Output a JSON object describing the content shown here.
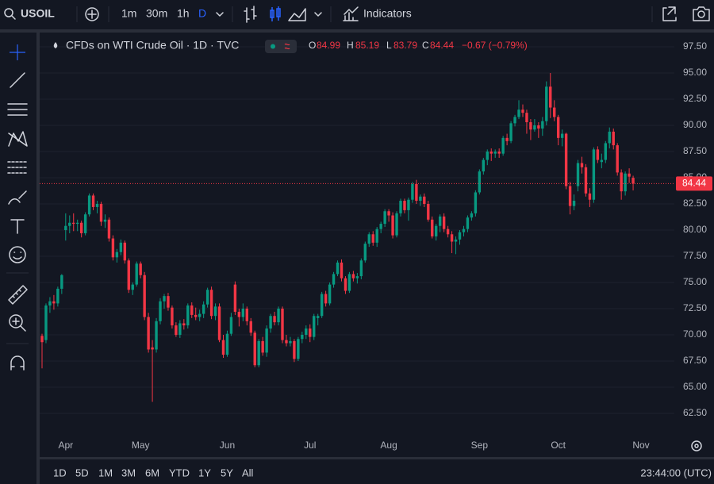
{
  "toolbar": {
    "symbol": "USOIL",
    "intervals": [
      "1m",
      "30m",
      "1h",
      "D"
    ],
    "indicators": "Indicators"
  },
  "chart_data": {
    "type": "candlestick",
    "title": "CFDs on WTI Crude Oil · 1D · TVC",
    "ohlc_labels": [
      "O",
      "H",
      "L",
      "C"
    ],
    "change": "−0.67 (−0.79%)",
    "up_color": "#089981",
    "down_color": "#f23645",
    "grid": true,
    "ylim": [
      60.68,
      98.94
    ],
    "yticks": [
      {
        "value": 62.5,
        "label": "62.50"
      },
      {
        "value": 65,
        "label": "65.00"
      },
      {
        "value": 67.5,
        "label": "67.50"
      },
      {
        "value": 70,
        "label": "70.00"
      },
      {
        "value": 72.5,
        "label": "72.50"
      },
      {
        "value": 75,
        "label": "75.00"
      },
      {
        "value": 77.5,
        "label": "77.50"
      },
      {
        "value": 80,
        "label": "80.00"
      },
      {
        "value": 82.5,
        "label": "82.50"
      },
      {
        "value": 85,
        "label": "85.00"
      },
      {
        "value": 87.5,
        "label": "87.50"
      },
      {
        "value": 90,
        "label": "90.00"
      },
      {
        "value": 92.5,
        "label": "92.50"
      },
      {
        "value": 95,
        "label": "95.00"
      },
      {
        "value": 97.5,
        "label": "97.50"
      }
    ],
    "categories": [
      null,
      null,
      null,
      null,
      null,
      null,
      "Apr",
      null,
      null,
      null,
      null,
      null,
      null,
      null,
      null,
      null,
      null,
      null,
      null,
      null,
      null,
      null,
      null,
      null,
      null,
      "May",
      null,
      null,
      null,
      null,
      null,
      null,
      null,
      null,
      null,
      null,
      null,
      null,
      null,
      null,
      null,
      null,
      null,
      null,
      null,
      null,
      null,
      "Jun",
      null,
      null,
      null,
      null,
      null,
      null,
      null,
      null,
      null,
      null,
      null,
      null,
      null,
      null,
      null,
      null,
      null,
      null,
      null,
      null,
      "Jul",
      null,
      null,
      null,
      null,
      null,
      null,
      null,
      null,
      null,
      null,
      null,
      null,
      null,
      null,
      null,
      null,
      null,
      null,
      null,
      "Aug",
      null,
      null,
      null,
      null,
      null,
      null,
      null,
      null,
      null,
      null,
      null,
      null,
      null,
      null,
      null,
      null,
      null,
      null,
      null,
      null,
      null,
      null,
      "Sep",
      null,
      null,
      null,
      null,
      null,
      null,
      null,
      null,
      null,
      null,
      null,
      null,
      null,
      null,
      null,
      null,
      null,
      null,
      null,
      "Oct",
      null,
      null,
      null,
      null,
      null,
      null,
      null,
      null,
      null,
      null,
      null,
      null,
      null,
      null,
      null,
      null,
      null,
      null,
      null,
      null,
      "Nov"
    ],
    "candles": [
      [
        69.9,
        70.1,
        66.8,
        69.3
      ],
      [
        69.5,
        73.0,
        69.2,
        72.8
      ],
      [
        72.8,
        73.6,
        72.1,
        73.2
      ],
      [
        73.2,
        73.8,
        72.4,
        73.0
      ],
      [
        73.0,
        74.6,
        72.7,
        74.4
      ],
      [
        74.4,
        75.8,
        73.9,
        75.7
      ],
      [
        80.0,
        81.6,
        79.0,
        80.4
      ],
      [
        80.4,
        81.4,
        79.7,
        80.7
      ],
      [
        80.7,
        81.6,
        79.9,
        80.6
      ],
      [
        80.6,
        81.0,
        79.9,
        80.7
      ],
      [
        80.7,
        80.9,
        79.3,
        79.7
      ],
      [
        79.7,
        81.7,
        79.5,
        81.5
      ],
      [
        81.5,
        83.5,
        81.3,
        83.3
      ],
      [
        83.3,
        83.5,
        81.9,
        82.2
      ],
      [
        82.2,
        82.8,
        81.6,
        82.5
      ],
      [
        82.5,
        82.7,
        80.4,
        80.8
      ],
      [
        80.8,
        81.5,
        80.2,
        81.0
      ],
      [
        81.0,
        81.2,
        78.9,
        79.2
      ],
      [
        79.2,
        79.5,
        77.1,
        77.4
      ],
      [
        77.4,
        78.2,
        76.9,
        77.9
      ],
      [
        77.9,
        79.1,
        77.6,
        78.8
      ],
      [
        78.8,
        79.0,
        76.8,
        77.1
      ],
      [
        77.1,
        77.3,
        74.0,
        74.3
      ],
      [
        74.3,
        75.0,
        73.8,
        74.8
      ],
      [
        74.8,
        77.0,
        74.6,
        76.8
      ],
      [
        76.8,
        77.0,
        75.4,
        75.7
      ],
      [
        75.7,
        76.0,
        71.4,
        71.7
      ],
      [
        71.7,
        72.1,
        68.3,
        68.6
      ],
      [
        68.8,
        69.5,
        63.6,
        68.6
      ],
      [
        68.6,
        71.6,
        68.3,
        71.3
      ],
      [
        71.3,
        73.5,
        71.0,
        73.2
      ],
      [
        73.2,
        73.9,
        72.5,
        73.7
      ],
      [
        73.7,
        74.0,
        72.3,
        72.6
      ],
      [
        72.6,
        72.8,
        70.6,
        70.9
      ],
      [
        70.9,
        71.2,
        69.8,
        70.0
      ],
      [
        70.0,
        71.4,
        69.7,
        71.1
      ],
      [
        71.1,
        71.5,
        70.5,
        70.9
      ],
      [
        70.9,
        73.0,
        70.6,
        72.8
      ],
      [
        72.8,
        73.1,
        71.6,
        71.9
      ],
      [
        71.9,
        72.6,
        71.4,
        71.7
      ],
      [
        71.7,
        72.4,
        71.3,
        72.0
      ],
      [
        72.0,
        73.2,
        71.6,
        72.9
      ],
      [
        72.9,
        74.5,
        72.6,
        74.3
      ],
      [
        74.3,
        74.6,
        71.5,
        71.8
      ],
      [
        71.8,
        73.0,
        71.4,
        72.7
      ],
      [
        72.7,
        73.0,
        69.3,
        69.5
      ],
      [
        69.5,
        70.0,
        67.8,
        68.1
      ],
      [
        68.1,
        70.4,
        67.9,
        70.1
      ],
      [
        70.1,
        72.1,
        69.9,
        71.7
      ],
      [
        74.8,
        75.1,
        71.9,
        72.2
      ],
      [
        72.2,
        72.5,
        70.8,
        71.7
      ],
      [
        71.7,
        73.0,
        71.3,
        72.5
      ],
      [
        72.5,
        72.7,
        70.9,
        71.3
      ],
      [
        71.3,
        71.6,
        69.9,
        70.2
      ],
      [
        70.2,
        70.4,
        66.9,
        67.1
      ],
      [
        67.1,
        69.6,
        66.9,
        69.4
      ],
      [
        69.4,
        69.8,
        68.0,
        68.3
      ],
      [
        68.3,
        70.9,
        67.9,
        70.6
      ],
      [
        70.6,
        72.0,
        70.2,
        71.8
      ],
      [
        71.8,
        72.2,
        70.9,
        71.2
      ],
      [
        71.2,
        72.7,
        70.9,
        72.5
      ],
      [
        72.5,
        72.7,
        69.2,
        69.5
      ],
      [
        69.5,
        70.0,
        68.9,
        69.2
      ],
      [
        69.2,
        69.8,
        68.9,
        69.4
      ],
      [
        69.4,
        69.6,
        67.4,
        67.7
      ],
      [
        67.7,
        69.8,
        67.5,
        69.6
      ],
      [
        69.6,
        70.3,
        69.2,
        70.0
      ],
      [
        70.0,
        70.9,
        69.6,
        70.6
      ],
      [
        70.6,
        71.0,
        69.3,
        69.8
      ],
      [
        69.8,
        72.0,
        69.5,
        71.8
      ],
      [
        71.6,
        72.0,
        70.9,
        71.8
      ],
      [
        71.8,
        74.1,
        71.6,
        73.9
      ],
      [
        73.9,
        74.2,
        72.7,
        73.0
      ],
      [
        73.0,
        75.0,
        72.8,
        74.8
      ],
      [
        74.8,
        76.0,
        74.5,
        75.8
      ],
      [
        75.8,
        77.1,
        75.6,
        76.9
      ],
      [
        76.9,
        77.2,
        75.1,
        75.4
      ],
      [
        75.4,
        75.6,
        73.9,
        74.2
      ],
      [
        74.2,
        76.0,
        74.0,
        75.8
      ],
      [
        75.8,
        76.1,
        75.1,
        75.4
      ],
      [
        75.4,
        75.9,
        74.9,
        75.6
      ],
      [
        75.6,
        77.3,
        75.3,
        77.1
      ],
      [
        77.1,
        78.9,
        76.9,
        78.7
      ],
      [
        78.7,
        79.8,
        78.4,
        79.6
      ],
      [
        79.6,
        79.9,
        78.5,
        78.8
      ],
      [
        78.8,
        80.3,
        78.4,
        80.1
      ],
      [
        80.1,
        80.8,
        79.7,
        80.6
      ],
      [
        80.6,
        82.0,
        80.3,
        81.8
      ],
      [
        81.8,
        82.0,
        80.8,
        81.4
      ],
      [
        81.4,
        81.7,
        79.2,
        79.5
      ],
      [
        79.5,
        81.8,
        79.3,
        81.6
      ],
      [
        81.6,
        83.0,
        81.3,
        82.8
      ],
      [
        82.8,
        83.0,
        81.6,
        81.9
      ],
      [
        81.9,
        83.1,
        80.9,
        82.9
      ],
      [
        82.9,
        84.6,
        82.6,
        84.4
      ],
      [
        84.4,
        84.8,
        82.5,
        82.8
      ],
      [
        82.8,
        83.4,
        82.3,
        83.2
      ],
      [
        83.2,
        83.5,
        82.2,
        82.5
      ],
      [
        82.5,
        82.8,
        80.8,
        81.0
      ],
      [
        81.0,
        81.3,
        79.2,
        79.4
      ],
      [
        79.4,
        80.6,
        79.0,
        80.4
      ],
      [
        80.4,
        81.5,
        79.8,
        81.3
      ],
      [
        81.3,
        81.6,
        79.8,
        80.1
      ],
      [
        80.1,
        80.4,
        79.3,
        79.6
      ],
      [
        79.6,
        79.9,
        77.8,
        78.9
      ],
      [
        78.9,
        79.4,
        77.7,
        79.1
      ],
      [
        79.1,
        80.0,
        78.6,
        79.8
      ],
      [
        79.8,
        80.4,
        79.4,
        80.1
      ],
      [
        80.1,
        81.4,
        79.8,
        81.2
      ],
      [
        81.2,
        81.8,
        80.9,
        81.6
      ],
      [
        81.6,
        83.8,
        81.3,
        83.6
      ],
      [
        83.6,
        85.8,
        83.4,
        85.6
      ],
      [
        85.6,
        86.9,
        85.3,
        86.7
      ],
      [
        86.7,
        87.7,
        86.2,
        87.5
      ],
      [
        87.5,
        87.8,
        86.6,
        87.3
      ],
      [
        87.3,
        87.7,
        86.9,
        87.5
      ],
      [
        87.5,
        87.8,
        86.9,
        87.3
      ],
      [
        87.3,
        89.0,
        87.1,
        88.8
      ],
      [
        88.8,
        89.2,
        88.1,
        88.5
      ],
      [
        88.5,
        90.4,
        88.3,
        90.2
      ],
      [
        90.2,
        91.0,
        89.9,
        90.8
      ],
      [
        90.8,
        92.4,
        90.6,
        91.5
      ],
      [
        91.5,
        92.0,
        90.8,
        91.2
      ],
      [
        91.2,
        91.5,
        89.2,
        90.3
      ],
      [
        90.3,
        90.6,
        88.6,
        89.6
      ],
      [
        89.6,
        90.6,
        89.4,
        90.0
      ],
      [
        90.0,
        90.3,
        88.8,
        89.7
      ],
      [
        89.7,
        90.8,
        89.0,
        90.4
      ],
      [
        90.4,
        94.2,
        90.0,
        93.7
      ],
      [
        93.7,
        95.0,
        90.7,
        91.7
      ],
      [
        91.7,
        92.4,
        90.4,
        90.8
      ],
      [
        90.8,
        91.0,
        88.1,
        88.8
      ],
      [
        88.8,
        89.6,
        88.0,
        89.2
      ],
      [
        89.2,
        89.3,
        83.9,
        84.2
      ],
      [
        84.2,
        84.6,
        81.5,
        82.3
      ],
      [
        82.3,
        83.4,
        81.9,
        82.8
      ],
      [
        84.2,
        86.7,
        83.7,
        86.4
      ],
      [
        86.4,
        87.0,
        85.4,
        86.0
      ],
      [
        86.0,
        86.3,
        83.2,
        83.5
      ],
      [
        83.5,
        84.0,
        82.2,
        82.9
      ],
      [
        82.9,
        87.9,
        82.6,
        87.7
      ],
      [
        87.7,
        88.0,
        86.4,
        86.7
      ],
      [
        86.5,
        87.3,
        85.9,
        86.7
      ],
      [
        86.7,
        88.5,
        86.4,
        88.3
      ],
      [
        88.3,
        89.8,
        87.8,
        89.4
      ],
      [
        89.4,
        89.7,
        87.7,
        88.1
      ],
      [
        88.1,
        88.3,
        85.2,
        85.5
      ],
      [
        85.5,
        85.8,
        82.9,
        83.7
      ],
      [
        83.7,
        85.6,
        83.3,
        85.4
      ],
      [
        85.4,
        85.9,
        84.5,
        85.1
      ],
      [
        84.99,
        85.19,
        83.79,
        84.44
      ],
      null,
      null
    ]
  },
  "range_bar": {
    "ranges": [
      "1D",
      "5D",
      "1M",
      "3M",
      "6M",
      "YTD",
      "1Y",
      "5Y",
      "All"
    ],
    "clock": "23:44:00 (UTC)"
  }
}
